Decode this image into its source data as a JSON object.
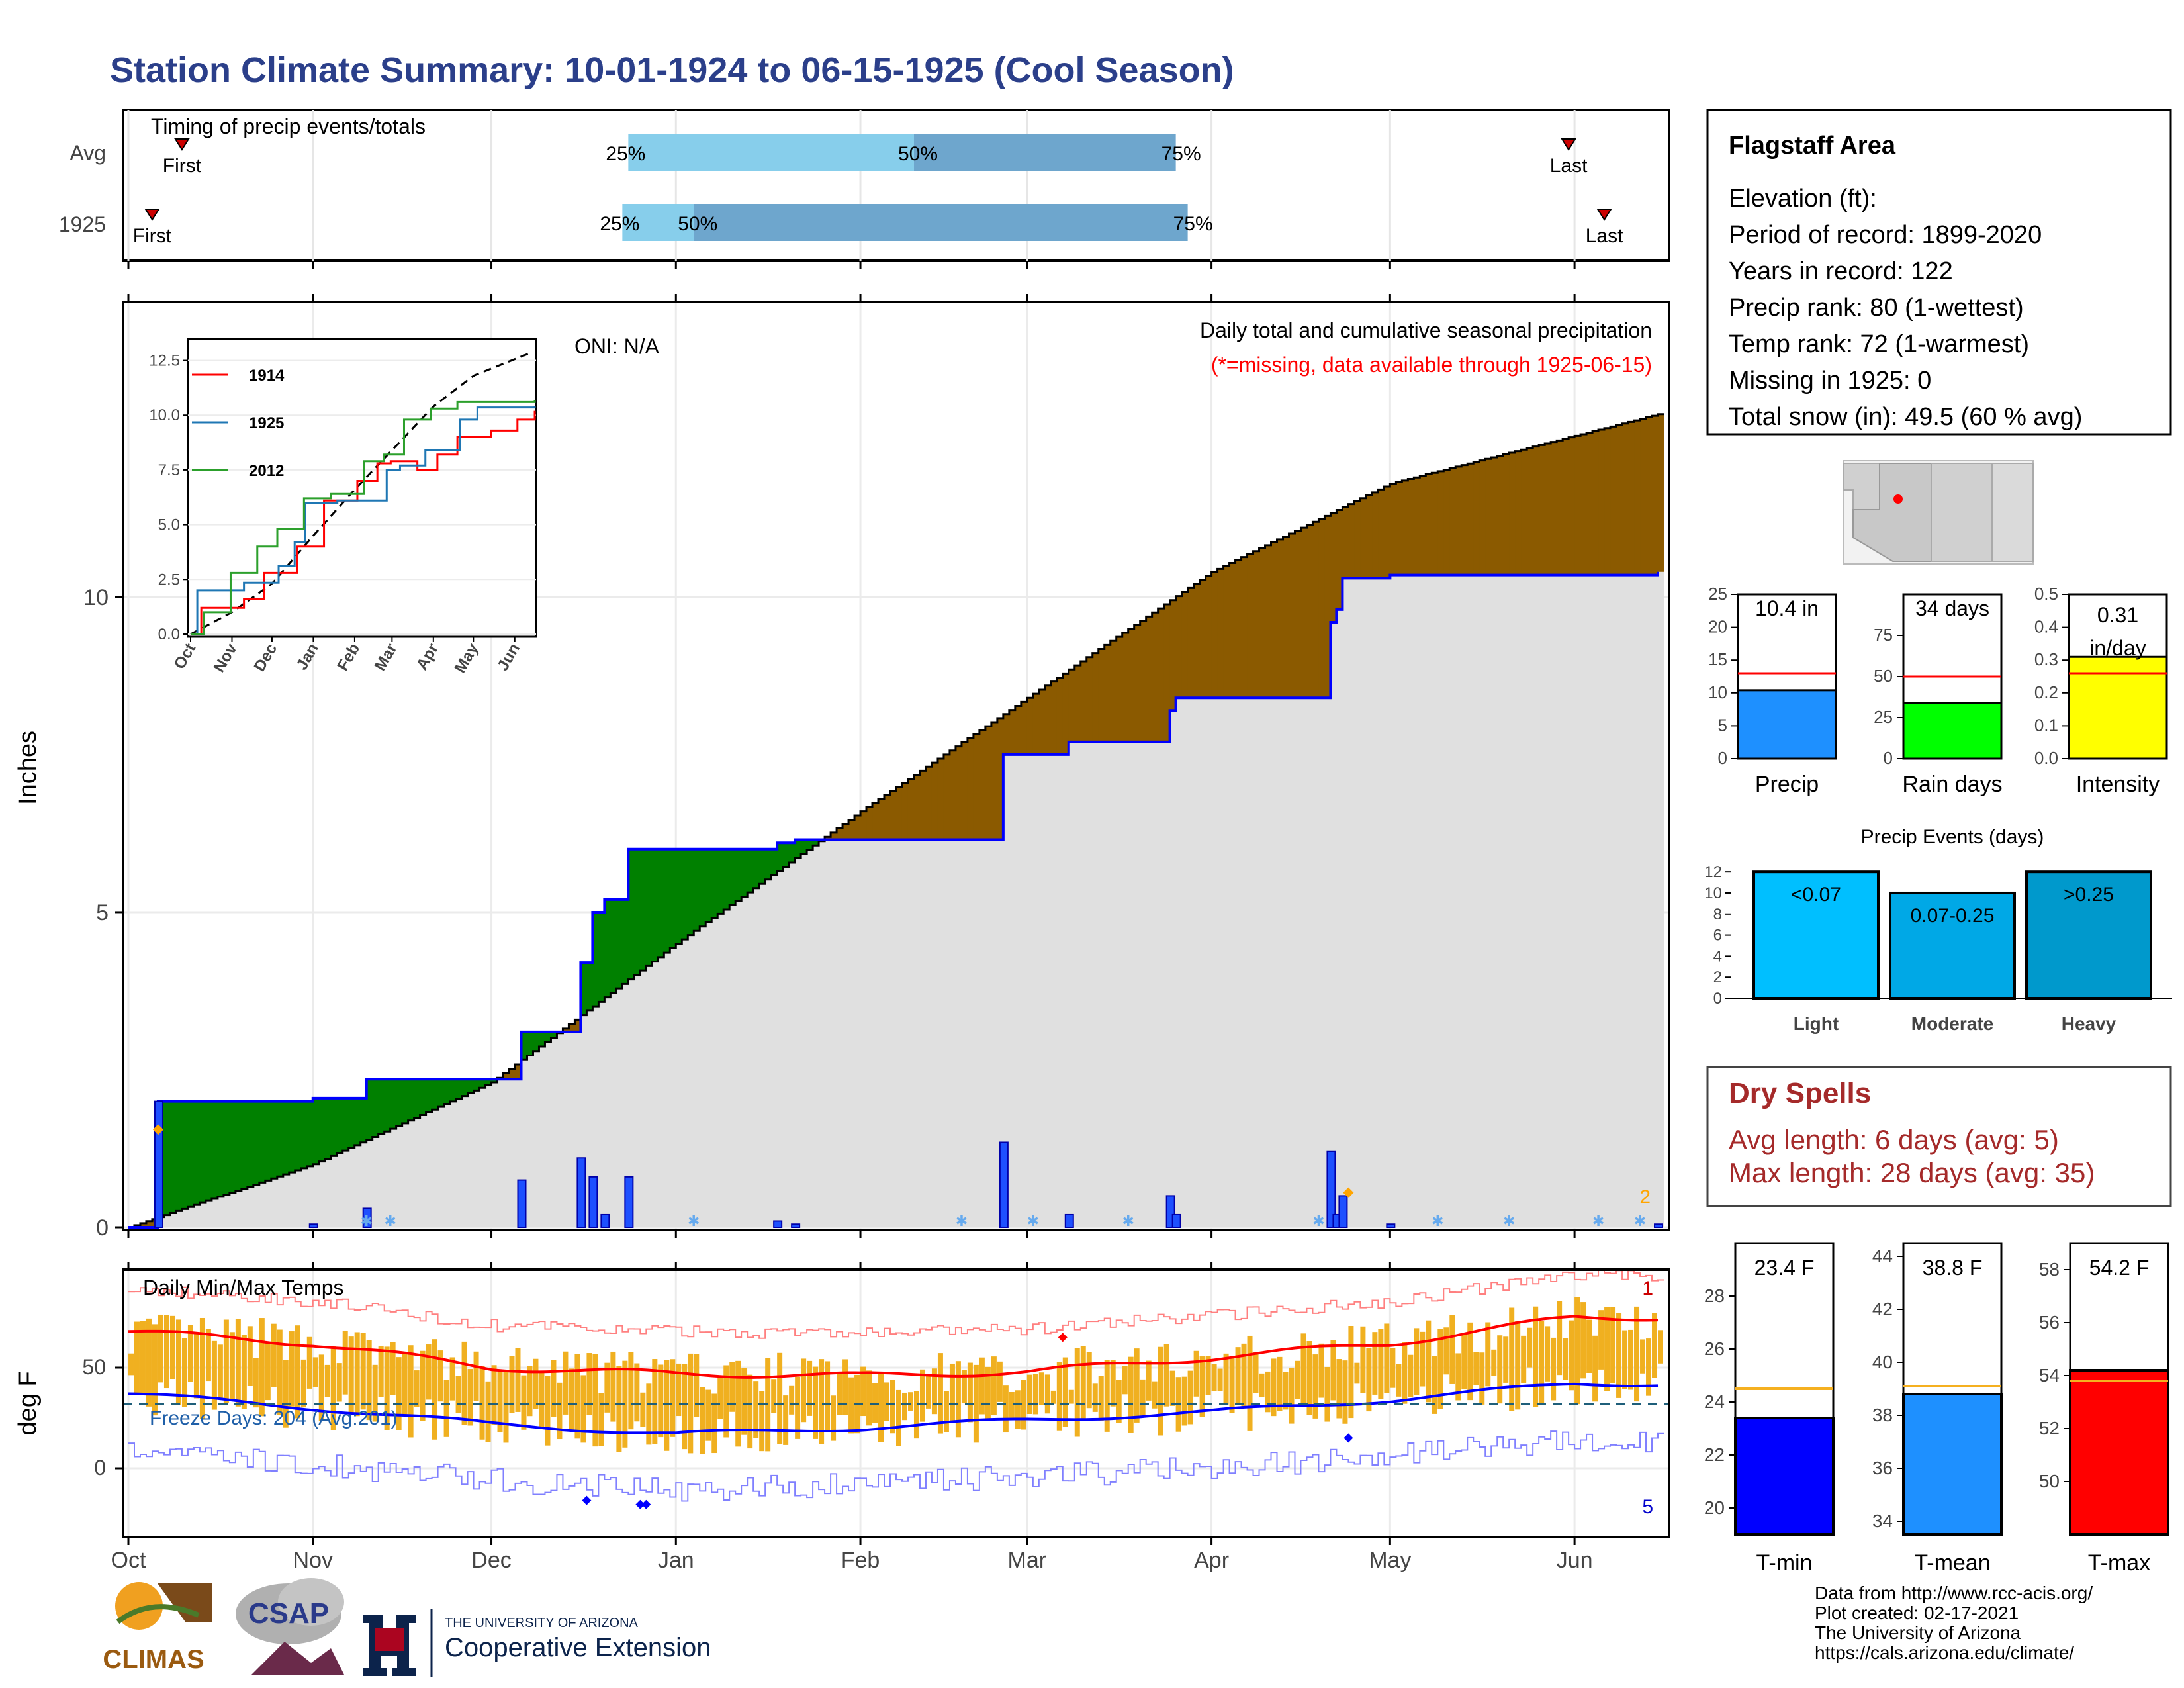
{
  "title": "Station Climate Summary: 10-01-1924 to 06-15-1925 (Cool Season)",
  "colors": {
    "title": "#2b3f8a",
    "bar_light": "#87ceeb",
    "bar_dark": "#6ea6cd",
    "green": "#008000",
    "brown": "#8b5a00",
    "gray_fill": "#e0e0e0",
    "blue": "#0000ff",
    "orange_bar": "#f0b020",
    "red": "#ff0000",
    "dry_spell": "#a52a2a"
  },
  "timing_panel": {
    "label": "Timing of precip events/totals",
    "rows": [
      {
        "name": "Avg",
        "first_label": "First",
        "last_label": "Last",
        "first": "1924-10-10",
        "last": "1925-05-31",
        "p25": "1924-12-24",
        "p50": "1925-02-10",
        "p75": "1925-03-26",
        "q25_label": "25%",
        "q50_label": "50%",
        "q75_label": "75%"
      },
      {
        "name": "1925",
        "first_label": "First",
        "last_label": "Last",
        "first": "1924-10-05",
        "last": "1925-06-06",
        "p25": "1924-12-23",
        "p50": "1925-01-04",
        "p75": "1925-03-28",
        "q25_label": "25%",
        "q50_label": "50%",
        "q75_label": "75%"
      }
    ]
  },
  "precip_panel": {
    "ylabel": "Inches",
    "oni": "ONI: N/A",
    "heading": "Daily total and cumulative seasonal precipitation",
    "missing_note": "(*=missing, data available through 1925-06-15)",
    "y_ticks": [
      "0",
      "5",
      "10"
    ],
    "corner_count": "2"
  },
  "inset": {
    "y_ticks": [
      "0.0",
      "2.5",
      "5.0",
      "7.5",
      "10.0",
      "12.5"
    ],
    "x_ticks": [
      "Oct",
      "Nov",
      "Dec",
      "Jan",
      "Feb",
      "Mar",
      "Apr",
      "May",
      "Jun"
    ],
    "legend": [
      {
        "name": "1914",
        "color": "#ff0000"
      },
      {
        "name": "1925",
        "color": "#1f77b4"
      },
      {
        "name": "2012",
        "color": "#2ca02c"
      }
    ]
  },
  "temp_panel": {
    "label": "Daily Min/Max Temps",
    "ylabel": "deg F",
    "y_ticks": [
      "0",
      "50"
    ],
    "freeze_text": "Freeze Days: 204 (Avg:201)",
    "corner_top": "1",
    "corner_bottom": "5"
  },
  "x_axis": [
    "Oct",
    "Nov",
    "Dec",
    "Jan",
    "Feb",
    "Mar",
    "Apr",
    "May",
    "Jun"
  ],
  "station": {
    "name": "Flagstaff Area",
    "lines": [
      "Elevation (ft):",
      "Period of record: 1899-2020",
      "Years in record: 122",
      "Precip rank: 80 (1-wettest)",
      "Temp rank: 72 (1-warmest)",
      "Missing in 1925: 0",
      "Total snow (in): 49.5 (60 % avg)"
    ]
  },
  "summary_bars": [
    {
      "label": "Precip",
      "value_text": "10.4 in",
      "value": 10.4,
      "avg": 13,
      "ticks": [
        "0",
        "5",
        "10",
        "15",
        "20",
        "25"
      ],
      "max": 25,
      "color": "#1e90ff"
    },
    {
      "label": "Rain days",
      "value_text": "34 days",
      "value": 34,
      "avg": 50,
      "ticks": [
        "0",
        "25",
        "50",
        "75"
      ],
      "max": 100,
      "color": "#00ff00"
    },
    {
      "label": "Intensity",
      "value_text": "0.31 in/day",
      "value": 0.31,
      "avg": 0.26,
      "ticks": [
        "0.0",
        "0.1",
        "0.2",
        "0.3",
        "0.4",
        "0.5"
      ],
      "max": 0.5,
      "color": "#ffff00"
    }
  ],
  "precip_events": {
    "title": "Precip Events (days)",
    "ticks": [
      "0",
      "2",
      "4",
      "6",
      "8",
      "10",
      "12"
    ],
    "bars": [
      {
        "category": "Light",
        "label": "<0.07",
        "value": 12,
        "color": "#00bfff"
      },
      {
        "category": "Moderate",
        "label": "0.07-0.25",
        "value": 10,
        "color": "#00a8e6"
      },
      {
        "category": "Heavy",
        "label": ">0.25",
        "value": 12,
        "color": "#0099cc"
      }
    ]
  },
  "dry_spells": {
    "title": "Dry Spells",
    "avg_line": "Avg length: 6 days (avg: 5)",
    "max_line": "Max length: 28 days (avg: 35)"
  },
  "temp_bars": [
    {
      "label": "T-min",
      "value_text": "23.4 F",
      "value": 23.4,
      "avg": 24.5,
      "ticks": [
        "20",
        "22",
        "24",
        "26",
        "28"
      ],
      "min": 19,
      "max": 30,
      "color": "#0000ff"
    },
    {
      "label": "T-mean",
      "value_text": "38.8 F",
      "value": 38.8,
      "avg": 39.1,
      "ticks": [
        "34",
        "36",
        "38",
        "40",
        "42",
        "44"
      ],
      "min": 33.5,
      "max": 44.5,
      "color": "#1e90ff"
    },
    {
      "label": "T-max",
      "value_text": "54.2 F",
      "value": 54.2,
      "avg": 53.8,
      "ticks": [
        "50",
        "52",
        "54",
        "56",
        "58"
      ],
      "min": 48,
      "max": 59,
      "color": "#ff0000"
    }
  ],
  "footer": {
    "lines": [
      "Data from http://www.rcc-acis.org/",
      "Plot created: 02-17-2021",
      "The University of Arizona",
      "https://cals.arizona.edu/climate/"
    ],
    "climas": "CLIMAS",
    "csap": "CSAP",
    "ua_small": "THE UNIVERSITY OF ARIZONA",
    "ua_big": "Cooperative Extension"
  },
  "chart_data": [
    {
      "type": "area",
      "title": "Daily total and cumulative seasonal precipitation",
      "ylabel": "Inches",
      "ylim": [
        0,
        14.2
      ],
      "series": [
        {
          "name": "1925",
          "dates": [
            "1924-10-01",
            "1924-10-05",
            "1924-10-06",
            "1924-11-01",
            "1924-11-10",
            "1924-12-01",
            "1924-12-06",
            "1924-12-16",
            "1924-12-18",
            "1924-12-20",
            "1924-12-24",
            "1924-12-28",
            "1925-01-18",
            "1925-01-21",
            "1925-02-25",
            "1925-03-07",
            "1925-03-08",
            "1925-03-25",
            "1925-03-26",
            "1925-04-20",
            "1925-04-21",
            "1925-04-22",
            "1925-04-23",
            "1925-05-01",
            "1925-06-15"
          ],
          "values": [
            0,
            0,
            2.0,
            2.05,
            2.35,
            2.35,
            3.1,
            4.2,
            5.0,
            5.2,
            6.0,
            6.0,
            6.1,
            6.15,
            7.5,
            7.5,
            7.7,
            8.2,
            8.4,
            8.4,
            9.6,
            9.8,
            10.3,
            10.35,
            10.4
          ]
        },
        {
          "name": "Avg",
          "dates": [
            "1924-10-01",
            "1924-11-01",
            "1924-12-01",
            "1925-01-01",
            "1925-02-01",
            "1925-03-01",
            "1925-04-01",
            "1925-05-01",
            "1925-06-15"
          ],
          "values": [
            0,
            1.0,
            2.3,
            4.5,
            6.6,
            8.4,
            10.4,
            11.8,
            12.9
          ]
        }
      ]
    },
    {
      "type": "line",
      "title": "Daily Min/Max Temps",
      "ylabel": "deg F",
      "x": [
        "Oct",
        "Nov",
        "Dec",
        "Jan",
        "Feb",
        "Mar",
        "Apr",
        "May",
        "Jun"
      ],
      "series": [
        {
          "name": "avg max",
          "values": [
            68,
            62,
            50,
            47,
            46,
            48,
            55,
            62,
            75
          ]
        },
        {
          "name": "avg min",
          "values": [
            37,
            30,
            22,
            17,
            20,
            24,
            28,
            34,
            42
          ]
        }
      ],
      "freeze_line": 32
    }
  ]
}
